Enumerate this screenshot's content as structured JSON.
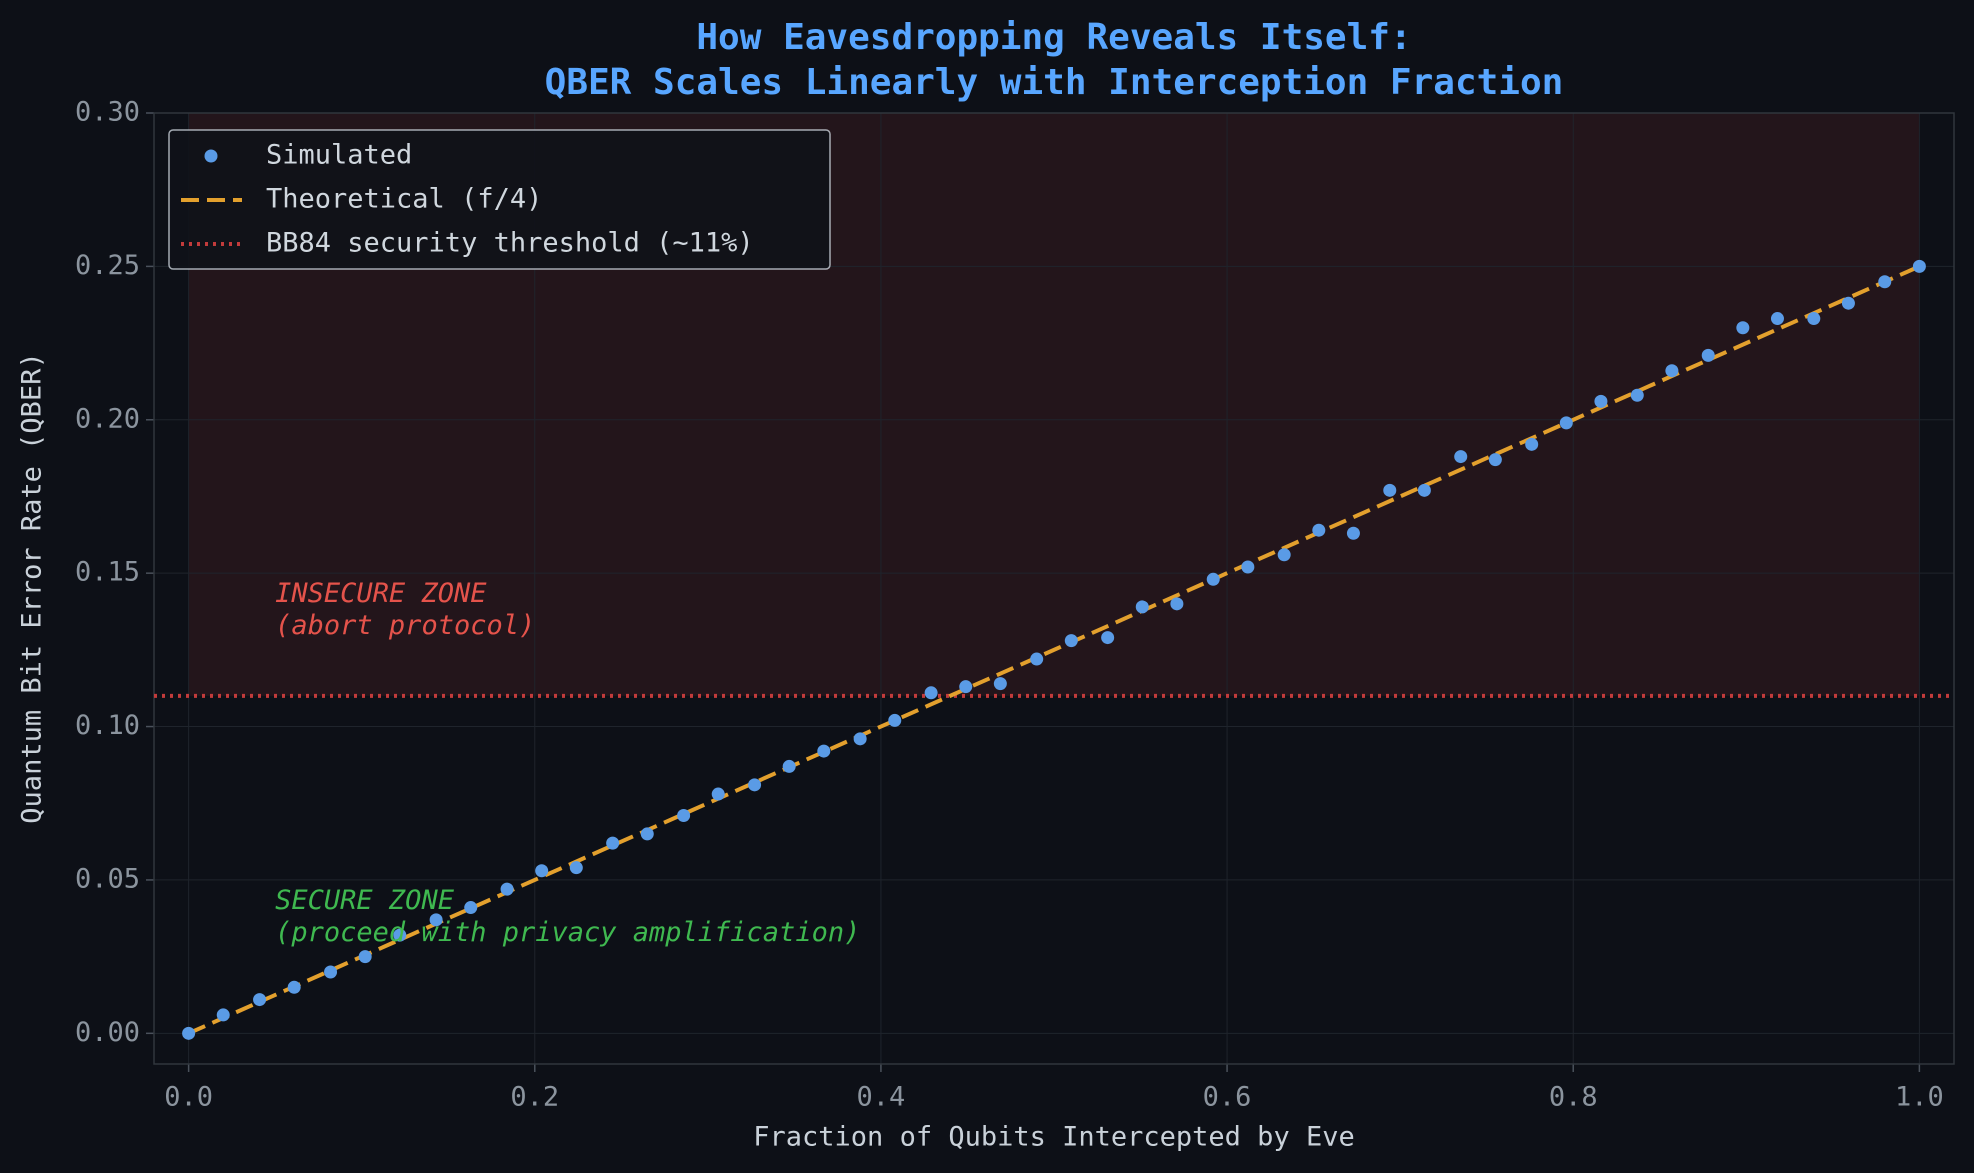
{
  "chart_data": {
    "type": "scatter",
    "title": [
      "How Eavesdropping Reveals Itself:",
      "QBER Scales Linearly with Interception Fraction"
    ],
    "x_label": "Fraction of Qubits Intercepted by Eve",
    "y_label": "Quantum Bit Error Rate (QBER)",
    "xlim": [
      -0.02,
      1.02
    ],
    "ylim": [
      -0.01,
      0.3
    ],
    "xticks": [
      {
        "value": 0,
        "label": "0.0"
      },
      {
        "value": 0.2,
        "label": "0.2"
      },
      {
        "value": 0.4,
        "label": "0.4"
      },
      {
        "value": 0.6,
        "label": "0.6"
      },
      {
        "value": 0.8,
        "label": "0.8"
      },
      {
        "value": 1,
        "label": "1.0"
      }
    ],
    "yticks": [
      {
        "value": 0,
        "label": "0.00"
      },
      {
        "value": 0.05,
        "label": "0.05"
      },
      {
        "value": 0.1,
        "label": "0.10"
      },
      {
        "value": 0.15,
        "label": "0.15"
      },
      {
        "value": 0.2,
        "label": "0.20"
      },
      {
        "value": 0.25,
        "label": "0.25"
      },
      {
        "value": 0.3,
        "label": "0.30"
      }
    ],
    "grid": true,
    "legend": "upper left",
    "series": [
      {
        "name": "Simulated",
        "kind": "scatter",
        "color": "#5a9be6",
        "x": [
          0,
          0.02,
          0.041,
          0.061,
          0.082,
          0.102,
          0.122,
          0.143,
          0.163,
          0.184,
          0.204,
          0.224,
          0.245,
          0.265,
          0.286,
          0.306,
          0.327,
          0.347,
          0.367,
          0.388,
          0.408,
          0.429,
          0.449,
          0.469,
          0.49,
          0.51,
          0.531,
          0.551,
          0.571,
          0.592,
          0.612,
          0.633,
          0.653,
          0.673,
          0.694,
          0.714,
          0.735,
          0.755,
          0.776,
          0.796,
          0.816,
          0.837,
          0.857,
          0.878,
          0.898,
          0.918,
          0.939,
          0.959,
          0.98,
          1
        ],
        "values": [
          0,
          0.006,
          0.011,
          0.015,
          0.02,
          0.025,
          0.032,
          0.037,
          0.041,
          0.047,
          0.053,
          0.054,
          0.062,
          0.065,
          0.071,
          0.078,
          0.081,
          0.087,
          0.092,
          0.096,
          0.102,
          0.111,
          0.113,
          0.114,
          0.122,
          0.128,
          0.129,
          0.139,
          0.14,
          0.148,
          0.152,
          0.156,
          0.164,
          0.163,
          0.177,
          0.177,
          0.188,
          0.187,
          0.192,
          0.199,
          0.206,
          0.208,
          0.216,
          0.221,
          0.23,
          0.233,
          0.233,
          0.238,
          0.245,
          0.25
        ]
      },
      {
        "name": "Theoretical (f/4)",
        "kind": "line",
        "color": "#e3a02d",
        "x": [
          0,
          1
        ],
        "values": [
          0,
          0.25
        ]
      }
    ],
    "threshold": {
      "name": "BB84 security threshold (~11%)",
      "value": 0.11,
      "color": "#c23b3b"
    },
    "annotations": [
      {
        "lines": [
          "INSECURE ZONE",
          "(abort protocol)"
        ],
        "x": 0.05,
        "y": 0.143,
        "color": "#e5534b"
      },
      {
        "lines": [
          "SECURE ZONE",
          "(proceed with privacy amplification)"
        ],
        "x": 0.05,
        "y": 0.043,
        "color": "#3fb950"
      }
    ]
  }
}
